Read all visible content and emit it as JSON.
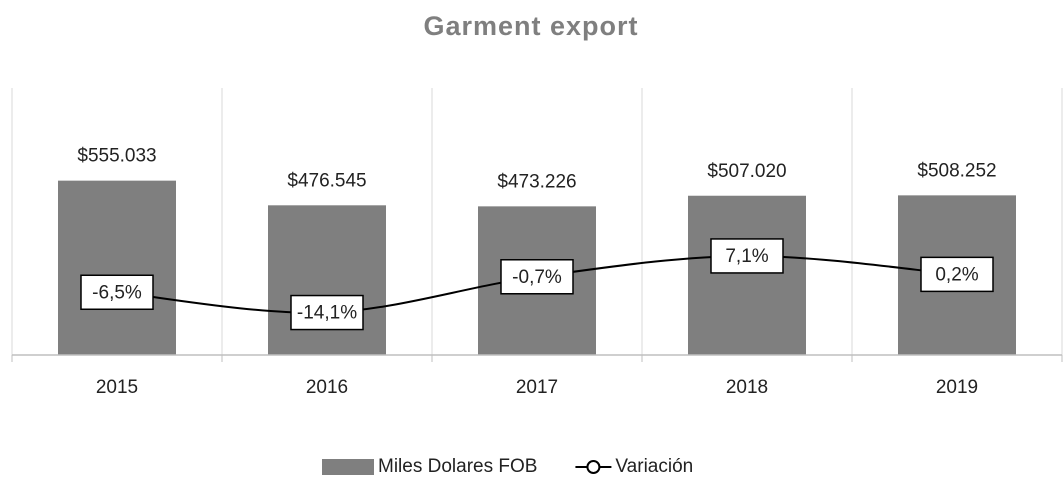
{
  "chart_data": {
    "type": "bar-line",
    "title": "Garment export",
    "categories": [
      "2015",
      "2016",
      "2017",
      "2018",
      "2019"
    ],
    "series": [
      {
        "name": "Miles Dolares FOB",
        "type": "bar",
        "color": "#7f7f7f",
        "values": [
          555033,
          476545,
          473226,
          507020,
          508252
        ],
        "value_labels": [
          "$555.033",
          "$476.545",
          "$473.226",
          "$507.020",
          "$508.252"
        ]
      },
      {
        "name": "Variación",
        "type": "line",
        "axis": "y2",
        "color": "#000000",
        "values": [
          -6.5,
          -14.1,
          -0.7,
          7.1,
          0.2
        ],
        "value_labels": [
          "-6,5%",
          "-14,1%",
          "-0,7%",
          "7,1%",
          "0,2%"
        ]
      }
    ],
    "ylim": [
      0,
      850000
    ],
    "y2lim": [
      -30,
      70
    ],
    "grid": true,
    "legend": "bottom"
  }
}
